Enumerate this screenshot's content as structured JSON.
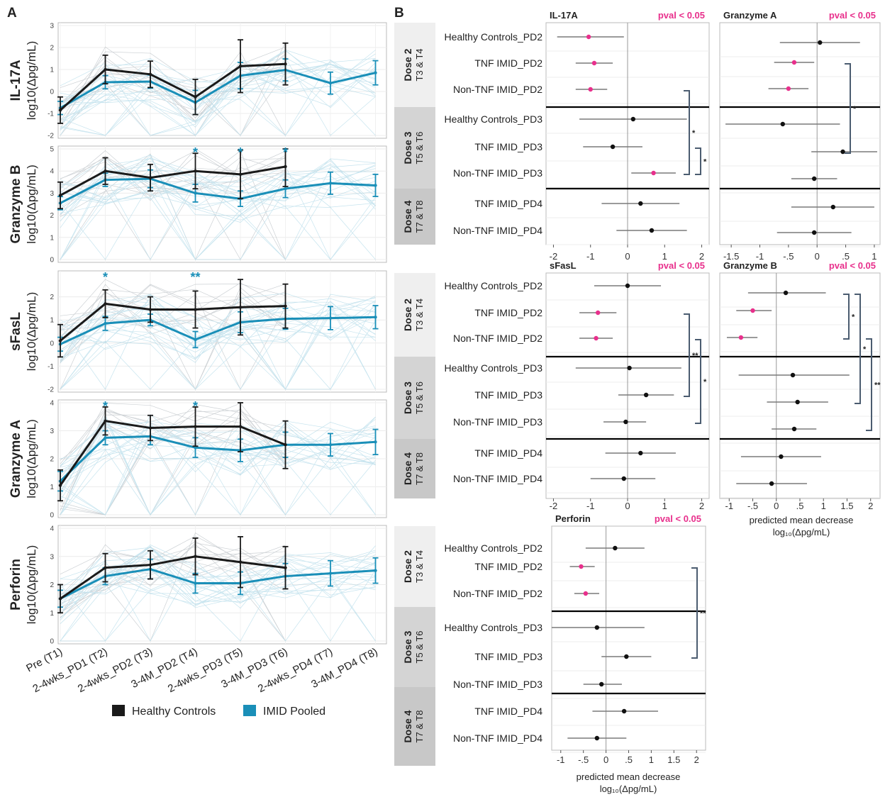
{
  "figure": {
    "panel_a_label": "A",
    "panel_b_label": "B",
    "colors": {
      "healthy": "#1a1a1a",
      "imid": "#1a8fb8",
      "significant": "#e8308c",
      "nonsignificant": "#111111",
      "bracket": "#4b5c70",
      "dose_band_light": "#efefef",
      "dose_band_dark": "#d4d4d4"
    },
    "legend": {
      "healthy_label": "Healthy Controls",
      "imid_label": "IMID Pooled"
    }
  },
  "chart_data": [
    {
      "type": "line",
      "panel": "A",
      "categories": [
        "Pre (T1)",
        "2-4wks_PD1 (T2)",
        "2-4wks_PD2 (T3)",
        "3-4M_PD2 (T4)",
        "2-4wks_PD3 (T5)",
        "3-4M_PD3 (T6)",
        "2-4wks_PD4 (T7)",
        "3-4M_PD4 (T8)"
      ],
      "panels": [
        {
          "name": "IL-17A",
          "ylabel": "log10(Δpg/mL)",
          "ylim": [
            -2,
            3
          ],
          "yticks": [
            "-2",
            "-1",
            "0",
            "1",
            "2",
            "3"
          ],
          "healthy": {
            "values": [
              -0.85,
              1.0,
              0.78,
              -0.25,
              1.15,
              1.25,
              null,
              null
            ],
            "err": [
              0.6,
              0.65,
              0.6,
              0.8,
              1.2,
              0.95,
              null,
              null
            ]
          },
          "imid": {
            "values": [
              -0.75,
              0.42,
              0.45,
              -0.5,
              0.72,
              0.98,
              0.38,
              0.85
            ],
            "err": [
              0.3,
              0.3,
              0.3,
              0.55,
              0.6,
              0.5,
              0.5,
              0.55
            ]
          },
          "stars": [
            null,
            null,
            null,
            null,
            null,
            null,
            null,
            null
          ]
        },
        {
          "name": "Granzyme B",
          "ylabel": "log10(Δpg/mL)",
          "ylim": [
            0,
            5
          ],
          "yticks": [
            "0",
            "1",
            "2",
            "3",
            "4",
            "5"
          ],
          "healthy": {
            "values": [
              2.9,
              4.0,
              3.7,
              4.0,
              3.85,
              4.2,
              null,
              null
            ],
            "err": [
              0.6,
              0.6,
              0.6,
              0.8,
              1.1,
              0.9,
              null,
              null
            ]
          },
          "imid": {
            "values": [
              2.55,
              3.6,
              3.65,
              3.0,
              2.75,
              3.2,
              3.45,
              3.35
            ],
            "err": [
              0.3,
              0.3,
              0.4,
              0.4,
              0.35,
              0.4,
              0.5,
              0.5
            ]
          },
          "stars": [
            null,
            null,
            null,
            "*",
            "*",
            "*",
            null,
            null
          ]
        },
        {
          "name": "sFasL",
          "ylabel": "log10(Δpg/mL)",
          "ylim": [
            -2,
            3
          ],
          "yticks": [
            "-2",
            "-1",
            "0",
            "1",
            "2"
          ],
          "healthy": {
            "values": [
              0.1,
              1.7,
              1.45,
              1.45,
              1.55,
              1.6,
              null,
              null
            ],
            "err": [
              0.7,
              0.6,
              0.55,
              0.8,
              1.2,
              0.95,
              null,
              null
            ]
          },
          "imid": {
            "values": [
              -0.05,
              0.85,
              1.0,
              0.15,
              0.9,
              1.05,
              1.08,
              1.12
            ],
            "err": [
              0.3,
              0.3,
              0.25,
              0.35,
              0.45,
              0.45,
              0.5,
              0.5
            ]
          },
          "stars": [
            null,
            "*",
            null,
            "**",
            null,
            null,
            null,
            null
          ]
        },
        {
          "name": "Granzyme A",
          "ylabel": "log10(Δpg/mL)",
          "ylim": [
            0,
            4
          ],
          "yticks": [
            "0",
            "1",
            "2",
            "3",
            "4"
          ],
          "healthy": {
            "values": [
              1.05,
              3.35,
              3.1,
              3.15,
              3.15,
              2.5,
              null,
              null
            ],
            "err": [
              0.55,
              0.5,
              0.45,
              0.7,
              0.9,
              0.85,
              null,
              null
            ]
          },
          "imid": {
            "values": [
              1.2,
              2.75,
              2.8,
              2.4,
              2.3,
              2.5,
              2.5,
              2.6
            ],
            "err": [
              0.35,
              0.25,
              0.3,
              0.35,
              0.4,
              0.45,
              0.4,
              0.45
            ]
          },
          "stars": [
            null,
            "*",
            null,
            "*",
            null,
            null,
            null,
            null
          ]
        },
        {
          "name": "Perforin",
          "ylabel": "log10(Δpg/mL)",
          "ylim": [
            0,
            4
          ],
          "yticks": [
            "0",
            "1",
            "2",
            "3",
            "4"
          ],
          "healthy": {
            "values": [
              1.5,
              2.6,
              2.7,
              3.0,
              2.8,
              2.6,
              null,
              null
            ],
            "err": [
              0.5,
              0.5,
              0.5,
              0.65,
              0.9,
              0.75,
              null,
              null
            ]
          },
          "imid": {
            "values": [
              1.5,
              2.3,
              2.55,
              2.05,
              2.05,
              2.3,
              2.4,
              2.5
            ],
            "err": [
              0.3,
              0.3,
              0.35,
              0.35,
              0.4,
              0.45,
              0.45,
              0.45
            ]
          },
          "stars": [
            null,
            null,
            null,
            null,
            null,
            null,
            null,
            null
          ]
        }
      ]
    },
    {
      "type": "scatter",
      "panel": "B",
      "xlabel_line1": "predicted mean decrease",
      "xlabel_line2": "log₁₀(Δpg/mL)",
      "rows": [
        "Healthy Controls_PD2",
        "TNF IMID_PD2",
        "Non-TNF IMID_PD2",
        "Healthy Controls_PD3",
        "TNF IMID_PD3",
        "Non-TNF IMID_PD3",
        "TNF IMID_PD4",
        "Non-TNF IMID_PD4"
      ],
      "rows_sfasl": [
        "Healthy Controls_PD2",
        "TNF IMID_PD2",
        "Non-TNF IMID_PD2",
        "Healthy Controls_PD3",
        "TNF IMID_PD3",
        "Non-TNF IMID_PD3",
        "TNF IMID_PD4",
        "Non-TNF IMID_PD4"
      ],
      "rows_perforin": [
        "Healthy Controls_PD2",
        "TNF IMID_PD2",
        "Non-TNF IMID_PD2",
        "Healthy Controls_PD3",
        "TNF IMID_PD3",
        "Non-TNF IMID_PD3",
        "TNF IMID_PD4",
        "Non-TNF IMID_PD4"
      ],
      "dose_groups": [
        {
          "title": "Dose 2",
          "sub": "T3 & T4"
        },
        {
          "title": "Dose 3",
          "sub": "T5 & T6"
        },
        {
          "title": "Dose 4",
          "sub": "T7 & T8"
        }
      ],
      "pval_label": "pval < 0.05",
      "plots": [
        {
          "title": "IL-17A",
          "xlim": [
            -2.2,
            2.2
          ],
          "xticks": [
            -2,
            -1,
            0,
            1,
            2
          ],
          "xtick_labels": [
            "-2",
            "-1",
            "0",
            "1",
            "2"
          ],
          "points": [
            {
              "est": -1.05,
              "lo": -1.9,
              "hi": -0.1,
              "sig": true
            },
            {
              "est": -0.9,
              "lo": -1.4,
              "hi": -0.4,
              "sig": true
            },
            {
              "est": -1.0,
              "lo": -1.4,
              "hi": -0.55,
              "sig": true
            },
            {
              "est": 0.15,
              "lo": -1.3,
              "hi": 1.6,
              "sig": false
            },
            {
              "est": -0.4,
              "lo": -1.2,
              "hi": 0.4,
              "sig": false
            },
            {
              "est": 0.7,
              "lo": 0.1,
              "hi": 1.3,
              "sig": true
            },
            {
              "est": 0.35,
              "lo": -0.7,
              "hi": 1.4,
              "sig": false
            },
            {
              "est": 0.65,
              "lo": -0.3,
              "hi": 1.6,
              "sig": false
            }
          ],
          "brackets": [
            {
              "from": 2,
              "to": 5,
              "label": "*"
            },
            {
              "from": 4,
              "to": 5,
              "label": "*"
            }
          ]
        },
        {
          "title": "Granzyme A",
          "xlim": [
            -1.7,
            1.1
          ],
          "xticks": [
            -1.5,
            -1,
            -0.5,
            0,
            0.5,
            1
          ],
          "xtick_labels": [
            "-1.5",
            "-1",
            "-.5",
            "0",
            ".5",
            "1"
          ],
          "points": [
            {
              "est": 0.05,
              "lo": -0.65,
              "hi": 0.75,
              "sig": false
            },
            {
              "est": -0.4,
              "lo": -0.75,
              "hi": -0.05,
              "sig": true
            },
            {
              "est": -0.5,
              "lo": -0.85,
              "hi": -0.15,
              "sig": true
            },
            {
              "est": -0.6,
              "lo": -1.6,
              "hi": 0.4,
              "sig": false
            },
            {
              "est": 0.45,
              "lo": -0.1,
              "hi": 1.05,
              "sig": false
            },
            {
              "est": -0.05,
              "lo": -0.45,
              "hi": 0.35,
              "sig": false
            },
            {
              "est": 0.28,
              "lo": -0.45,
              "hi": 1.0,
              "sig": false
            },
            {
              "est": -0.05,
              "lo": -0.7,
              "hi": 0.6,
              "sig": false
            }
          ],
          "brackets": [
            {
              "from": 1,
              "to": 4,
              "label": "*"
            }
          ]
        },
        {
          "title": "sFasL",
          "xlim": [
            -2.2,
            2.2
          ],
          "xticks": [
            -2,
            -1,
            0,
            1,
            2
          ],
          "xtick_labels": [
            "-2",
            "-1",
            "0",
            "1",
            "2"
          ],
          "points": [
            {
              "est": 0.0,
              "lo": -0.9,
              "hi": 0.9,
              "sig": false
            },
            {
              "est": -0.8,
              "lo": -1.3,
              "hi": -0.3,
              "sig": true
            },
            {
              "est": -0.85,
              "lo": -1.3,
              "hi": -0.4,
              "sig": true
            },
            {
              "est": 0.05,
              "lo": -1.4,
              "hi": 1.45,
              "sig": false
            },
            {
              "est": 0.5,
              "lo": -0.25,
              "hi": 1.25,
              "sig": false
            },
            {
              "est": -0.05,
              "lo": -0.65,
              "hi": 0.5,
              "sig": false
            },
            {
              "est": 0.35,
              "lo": -0.6,
              "hi": 1.3,
              "sig": false
            },
            {
              "est": -0.1,
              "lo": -1.0,
              "hi": 0.75,
              "sig": false
            }
          ],
          "brackets": [
            {
              "from": 1,
              "to": 4,
              "label": "**"
            },
            {
              "from": 2,
              "to": 5,
              "label": "*"
            }
          ]
        },
        {
          "title": "Granzyme B",
          "xlim": [
            -1.2,
            2.2
          ],
          "xticks": [
            -1,
            -0.5,
            0,
            0.5,
            1,
            1.5,
            2
          ],
          "xtick_labels": [
            "-1",
            "-.5",
            "0",
            ".5",
            "1",
            "1.5",
            "2"
          ],
          "points": [
            {
              "est": 0.2,
              "lo": -0.6,
              "hi": 1.05,
              "sig": false
            },
            {
              "est": -0.5,
              "lo": -0.85,
              "hi": -0.1,
              "sig": true
            },
            {
              "est": -0.75,
              "lo": -1.05,
              "hi": -0.4,
              "sig": true
            },
            {
              "est": 0.35,
              "lo": -0.8,
              "hi": 1.55,
              "sig": false
            },
            {
              "est": 0.45,
              "lo": -0.2,
              "hi": 1.1,
              "sig": false
            },
            {
              "est": 0.38,
              "lo": -0.1,
              "hi": 0.85,
              "sig": false
            },
            {
              "est": 0.1,
              "lo": -0.75,
              "hi": 0.95,
              "sig": false
            },
            {
              "est": -0.1,
              "lo": -0.85,
              "hi": 0.65,
              "sig": false
            }
          ],
          "brackets": [
            {
              "from": 0,
              "to": 2,
              "label": "*"
            },
            {
              "from": 0,
              "to": 4,
              "label": "*"
            },
            {
              "from": 2,
              "to": 5,
              "label": "**"
            }
          ]
        },
        {
          "title": "Perforin",
          "xlim": [
            -1.2,
            2.2
          ],
          "xticks": [
            -1,
            -0.5,
            0,
            0.5,
            1,
            1.5,
            2
          ],
          "xtick_labels": [
            "-1",
            "-.5",
            "0",
            ".5",
            "1",
            "1.5",
            "2"
          ],
          "points": [
            {
              "est": 0.2,
              "lo": -0.45,
              "hi": 0.85,
              "sig": false
            },
            {
              "est": -0.55,
              "lo": -0.8,
              "hi": -0.25,
              "sig": true
            },
            {
              "est": -0.45,
              "lo": -0.7,
              "hi": -0.15,
              "sig": true
            },
            {
              "est": -0.2,
              "lo": -1.2,
              "hi": 0.85,
              "sig": false
            },
            {
              "est": 0.45,
              "lo": -0.1,
              "hi": 1.0,
              "sig": false
            },
            {
              "est": -0.1,
              "lo": -0.5,
              "hi": 0.35,
              "sig": false
            },
            {
              "est": 0.4,
              "lo": -0.3,
              "hi": 1.15,
              "sig": false
            },
            {
              "est": -0.2,
              "lo": -0.85,
              "hi": 0.45,
              "sig": false
            }
          ],
          "brackets": [
            {
              "from": 1,
              "to": 4,
              "label": "**"
            }
          ]
        }
      ]
    }
  ]
}
